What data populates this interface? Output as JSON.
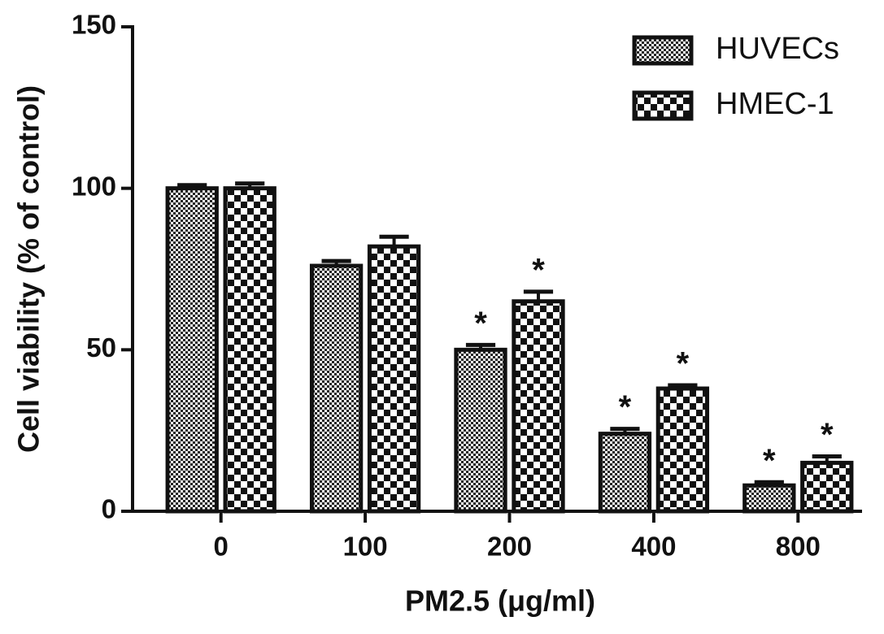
{
  "chart_data": {
    "type": "bar",
    "x_label": "PM2.5 (μg/ml)",
    "y_label": "Cell viability  (% of control)",
    "categories": [
      "0",
      "100",
      "200",
      "400",
      "800"
    ],
    "series": [
      {
        "name": "HUVECs",
        "color": "#111111",
        "values": [
          100,
          76,
          50,
          24,
          8
        ],
        "errors": [
          1,
          1.5,
          1.5,
          1.5,
          1
        ],
        "markers": [
          null,
          null,
          "*",
          "*",
          "*"
        ]
      },
      {
        "name": "HMEC-1",
        "color": "#111111",
        "values": [
          100,
          82,
          65,
          38,
          15
        ],
        "errors": [
          1.5,
          3,
          3,
          1,
          2
        ],
        "markers": [
          null,
          null,
          "*",
          "*",
          "*"
        ]
      }
    ],
    "ylim": [
      0,
      150
    ],
    "yticks": [
      0,
      50,
      100,
      150
    ],
    "legend": "top-right"
  }
}
